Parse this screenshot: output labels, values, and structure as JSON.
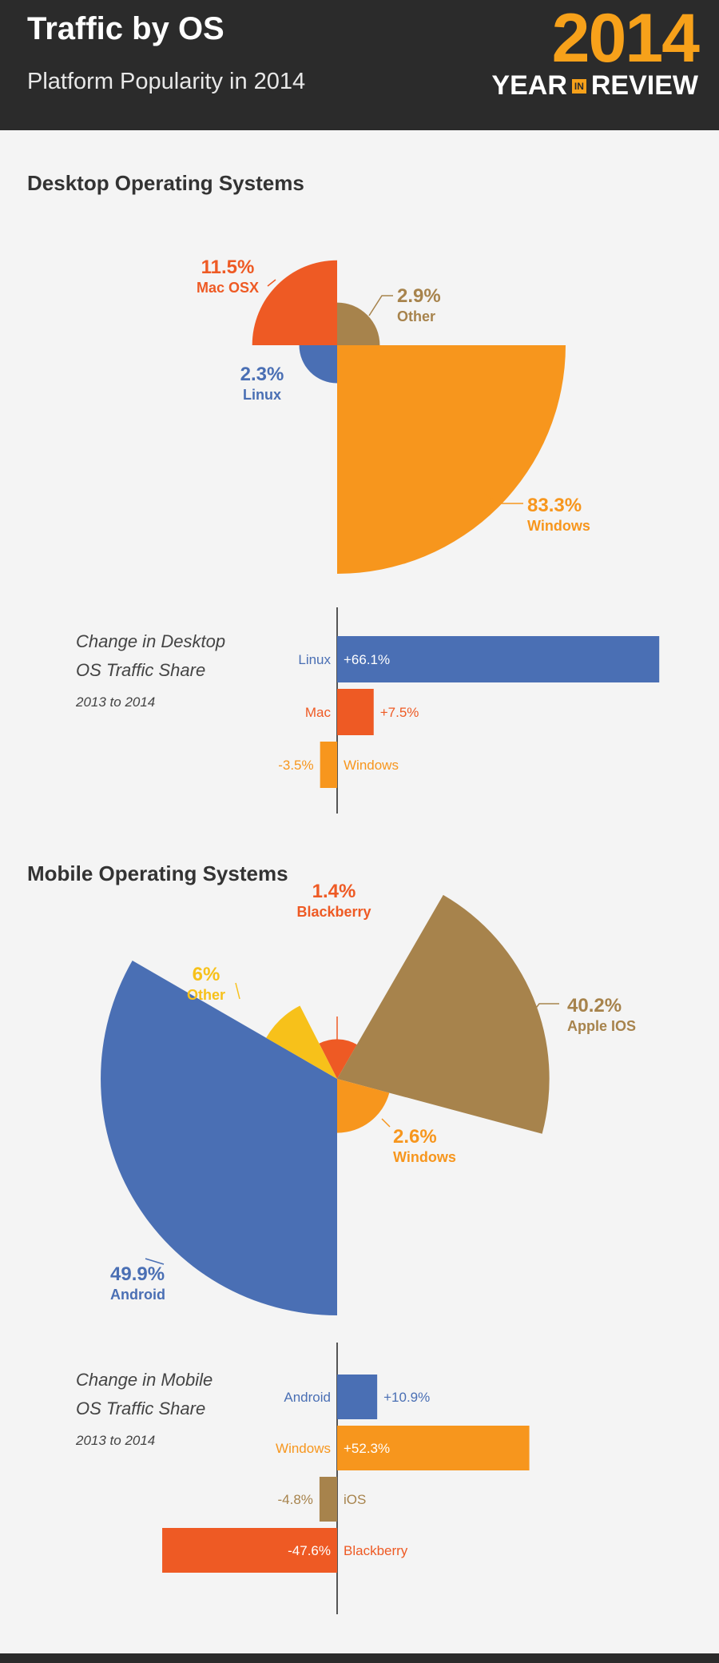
{
  "header": {
    "title": "Traffic by OS",
    "subtitle": "Platform Popularity in 2014",
    "badge_year": "2014",
    "badge_year_word": "YEAR",
    "badge_in": "IN",
    "badge_review_word": "REVIEW"
  },
  "colors": {
    "header_bg": "#2b2b2b",
    "accent": "#f7a11a",
    "windows": "#f7961d",
    "mac": "#ee5a24",
    "other_desktop": "#a7834c",
    "linux": "#4a6fb4",
    "apple_ios": "#a7834c",
    "blackberry": "#ee5a24",
    "other_mobile": "#f7c11a",
    "android": "#4a6fb4"
  },
  "sections": {
    "desktop_title": "Desktop Operating Systems",
    "mobile_title": "Mobile Operating Systems"
  },
  "chart_data": [
    {
      "type": "pie",
      "variant": "polar-area",
      "slices": [
        {
          "label": "Windows",
          "value": 83.3,
          "value_text": "83.3%",
          "color": "#f7961d"
        },
        {
          "label": "Linux",
          "value": 2.3,
          "value_text": "2.3%",
          "color": "#4a6fb4"
        },
        {
          "label": "Mac OSX",
          "value": 11.5,
          "value_text": "11.5%",
          "color": "#ee5a24"
        },
        {
          "label": "Other",
          "value": 2.9,
          "value_text": "2.9%",
          "color": "#a7834c"
        }
      ]
    },
    {
      "type": "bar",
      "orientation": "horizontal",
      "title_lines": [
        "Change in Desktop",
        "OS Traffic Share"
      ],
      "subtitle": "2013 to 2014",
      "categories": [
        "Linux",
        "Mac",
        "Windows"
      ],
      "values": [
        66.1,
        7.5,
        -3.5
      ],
      "value_labels": [
        "+66.1%",
        "+7.5%",
        "-3.5%"
      ],
      "colors": [
        "#4a6fb4",
        "#ee5a24",
        "#f7961d"
      ],
      "xlim": [
        -35,
        66.1
      ]
    },
    {
      "type": "pie",
      "variant": "polar-area",
      "slices": [
        {
          "label": "Blackberry",
          "value": 1.4,
          "value_text": "1.4%",
          "color": "#ee5a24"
        },
        {
          "label": "Apple IOS",
          "value": 40.2,
          "value_text": "40.2%",
          "color": "#a7834c"
        },
        {
          "label": "Windows",
          "value": 2.6,
          "value_text": "2.6%",
          "color": "#f7961d"
        },
        {
          "label": "Android",
          "value": 49.9,
          "value_text": "49.9%",
          "color": "#4a6fb4"
        },
        {
          "label": "Other",
          "value": 6,
          "value_text": "6%",
          "color": "#f7c11a"
        }
      ]
    },
    {
      "type": "bar",
      "orientation": "horizontal",
      "title_lines": [
        "Change in Mobile",
        "OS Traffic Share"
      ],
      "subtitle": "2013 to 2014",
      "categories": [
        "Android",
        "Windows",
        "iOS",
        "Blackberry"
      ],
      "values": [
        10.9,
        52.3,
        -4.8,
        -47.6
      ],
      "value_labels": [
        "+10.9%",
        "+52.3%",
        "-4.8%",
        "-47.6%"
      ],
      "colors": [
        "#4a6fb4",
        "#f7961d",
        "#a7834c",
        "#ee5a24"
      ],
      "xlim": [
        -47.6,
        66.1
      ]
    }
  ]
}
